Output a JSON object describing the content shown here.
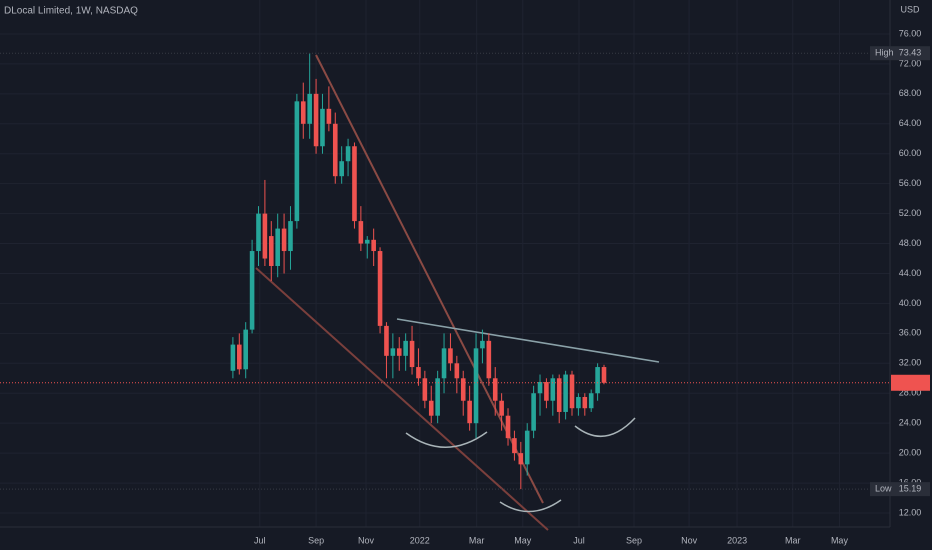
{
  "chart_data": {
    "type": "candlestick",
    "title": "DLocal Limited, 1W, NASDAQ",
    "y_axis_unit": "USD",
    "up_color": "#26a69a",
    "down_color": "#ef5350",
    "grid": true,
    "categories": [
      null,
      null,
      null,
      null,
      null,
      null,
      null,
      null,
      null,
      null,
      null,
      null,
      null,
      null,
      null,
      null,
      null,
      null,
      null,
      null,
      null,
      null,
      null,
      null,
      null,
      null,
      null,
      null,
      null,
      null,
      null,
      null,
      null,
      null,
      null,
      null,
      null,
      null,
      null,
      null,
      null,
      null,
      null,
      null,
      null,
      null,
      null,
      null,
      null,
      null,
      null,
      null,
      null,
      null,
      null,
      null,
      null,
      null,
      null
    ],
    "open": [
      31,
      34.5,
      31.2,
      36.5,
      47,
      52,
      49,
      45,
      50,
      47,
      51,
      67,
      64,
      68,
      61,
      66,
      64,
      57,
      59,
      61,
      51,
      48,
      48.5,
      47,
      37,
      33,
      34,
      33,
      35,
      31.5,
      30,
      27,
      25,
      30,
      34,
      32,
      30,
      27,
      24,
      34,
      35,
      30,
      27,
      25,
      22,
      20,
      18.5,
      23,
      28,
      29.5,
      27,
      30,
      25.5,
      30.5,
      26,
      27.5,
      26,
      28,
      31.5
    ],
    "high": [
      35.5,
      36,
      37.5,
      48.5,
      53,
      56.5,
      51,
      52,
      52,
      53,
      68,
      69.5,
      73.43,
      70,
      68,
      69,
      65.5,
      61,
      62,
      61.5,
      53,
      49,
      50,
      47.5,
      37.5,
      36,
      35.5,
      36,
      37,
      34,
      31,
      29,
      31,
      36,
      36,
      33,
      31,
      29,
      36,
      36.5,
      36,
      31.5,
      28,
      26,
      23,
      21.5,
      24,
      29,
      30.5,
      30,
      30.5,
      30.5,
      31,
      31,
      28,
      28,
      28.5,
      32,
      31.8
    ],
    "low": [
      30,
      30.5,
      30,
      36,
      45,
      45,
      43,
      43.5,
      44,
      44.5,
      50,
      62,
      62,
      60,
      60,
      63,
      56,
      56,
      57,
      50,
      47,
      46,
      45,
      36,
      30,
      30,
      31,
      31,
      30.5,
      29,
      26,
      24,
      24,
      28,
      31,
      28,
      25,
      23,
      22,
      32,
      29,
      25,
      23,
      21,
      19,
      15.19,
      17,
      22,
      25,
      26,
      25,
      24,
      24.5,
      25,
      25,
      25,
      25.5,
      27,
      29.2
    ],
    "close": [
      34.5,
      31.2,
      36.5,
      47,
      52,
      46,
      45,
      50,
      47,
      51,
      67,
      64,
      68,
      61,
      66,
      64,
      57,
      59,
      61,
      51,
      48,
      48.5,
      47,
      37,
      33,
      34,
      33,
      35,
      31.5,
      30,
      27,
      25,
      30,
      34,
      32,
      30,
      27,
      24,
      34,
      35,
      30,
      27,
      25,
      22,
      20,
      18.5,
      23,
      28,
      29.5,
      27,
      30,
      25.5,
      30.5,
      26,
      27.5,
      26,
      28,
      31.5,
      29.4
    ],
    "high_label": {
      "label": "High",
      "value": 73.43
    },
    "low_label": {
      "label": "Low",
      "value": 15.19
    },
    "xlim": [
      -36.4,
      102.7
    ],
    "xticks": [
      {
        "value": 4.2,
        "label": "Jul"
      },
      {
        "value": 13.0,
        "label": "Sep"
      },
      {
        "value": 20.8,
        "label": "Nov"
      },
      {
        "value": 29.2,
        "label": "2022"
      },
      {
        "value": 38.1,
        "label": "Mar"
      },
      {
        "value": 45.3,
        "label": "May"
      },
      {
        "value": 54.1,
        "label": "Jul"
      },
      {
        "value": 62.7,
        "label": "Sep"
      },
      {
        "value": 71.3,
        "label": "Nov"
      },
      {
        "value": 78.8,
        "label": "2023"
      },
      {
        "value": 87.5,
        "label": "Mar"
      },
      {
        "value": 94.8,
        "label": "May"
      }
    ],
    "ylim": [
      10.13,
      80.54
    ],
    "yticks": [
      {
        "value": 12,
        "label": "12.00"
      },
      {
        "value": 16,
        "label": "16.00"
      },
      {
        "value": 20,
        "label": "20.00"
      },
      {
        "value": 24,
        "label": "24.00"
      },
      {
        "value": 28,
        "label": "28.00"
      },
      {
        "value": 32,
        "label": "32.00"
      },
      {
        "value": 36,
        "label": "36.00"
      },
      {
        "value": 40,
        "label": "40.00"
      },
      {
        "value": 44,
        "label": "44.00"
      },
      {
        "value": 48,
        "label": "48.00"
      },
      {
        "value": 52,
        "label": "52.00"
      },
      {
        "value": 56,
        "label": "56.00"
      },
      {
        "value": 60,
        "label": "60.00"
      },
      {
        "value": 64,
        "label": "64.00"
      },
      {
        "value": 68,
        "label": "68.00"
      },
      {
        "value": 72,
        "label": "72.00"
      },
      {
        "value": 76,
        "label": "76.00"
      }
    ]
  }
}
